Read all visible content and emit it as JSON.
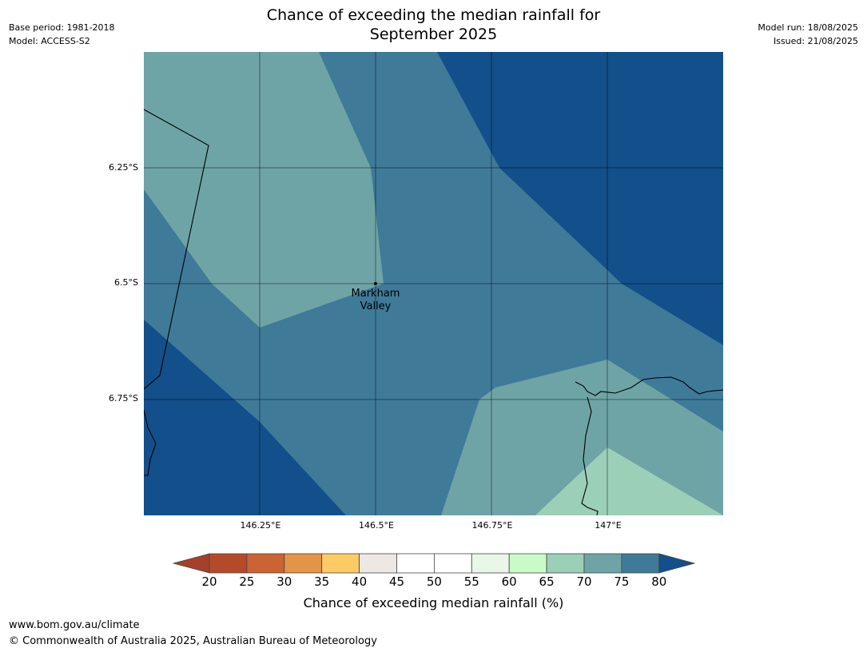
{
  "title_line1": "Chance of exceeding the median rainfall for",
  "title_line2": "September 2025",
  "meta_left": [
    "Base period: 1981-2018",
    "Model: ACCESS-S2"
  ],
  "meta_right": [
    "Model run: 18/08/2025",
    "Issued: 21/08/2025"
  ],
  "y_ticks": [
    "6.25°S",
    "6.5°S",
    "6.75°S"
  ],
  "x_ticks": [
    "146.25°E",
    "146.5°E",
    "146.75°E",
    "147°E"
  ],
  "place": {
    "name_line1": "Markham",
    "name_line2": "Valley"
  },
  "colorbar": {
    "label": "Chance of exceeding median rainfall (%)",
    "ticks": [
      "20",
      "25",
      "30",
      "35",
      "40",
      "45",
      "50",
      "55",
      "60",
      "65",
      "70",
      "75",
      "80"
    ],
    "colors": [
      "#a5402a",
      "#b44a28",
      "#cc6333",
      "#e39446",
      "#fdcb66",
      "#ede8e3",
      "#ffffff",
      "#ffffff",
      "#e9f7e9",
      "#c9fbc9",
      "#9ccfb8",
      "#6fa4a6",
      "#3f7a99",
      "#134f8a"
    ]
  },
  "footer": {
    "url": "www.bom.gov.au/climate",
    "copyright": "© Commonwealth of Australia 2025, Australian Bureau of Meteorology"
  }
}
